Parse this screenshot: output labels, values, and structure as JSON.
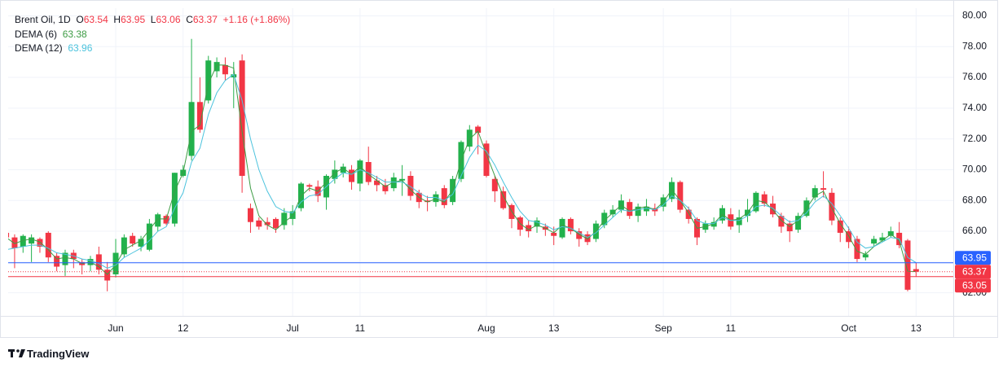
{
  "chart_data": {
    "type": "candlestick",
    "title": "Brent Oil, 1D",
    "ohlc_letters": [
      "O",
      "H",
      "L",
      "C"
    ],
    "change": {
      "value": 1.16,
      "label": "+1.16"
    },
    "change_pct": {
      "value": 1.86,
      "label": "(+1.86%)"
    },
    "categories": [
      null,
      null,
      null,
      null,
      null,
      null,
      null,
      null,
      null,
      null,
      null,
      null,
      null,
      "Jun",
      null,
      null,
      null,
      null,
      null,
      null,
      null,
      "12",
      null,
      null,
      null,
      null,
      null,
      null,
      null,
      null,
      null,
      null,
      null,
      null,
      "Jul",
      null,
      null,
      null,
      null,
      null,
      null,
      null,
      "11",
      null,
      null,
      null,
      null,
      null,
      null,
      null,
      null,
      null,
      null,
      null,
      null,
      null,
      null,
      "Aug",
      null,
      null,
      null,
      null,
      null,
      null,
      null,
      "13",
      null,
      null,
      null,
      null,
      null,
      null,
      null,
      null,
      null,
      null,
      null,
      null,
      "Sep",
      null,
      null,
      null,
      null,
      null,
      null,
      null,
      "11",
      null,
      null,
      null,
      null,
      null,
      null,
      null,
      null,
      null,
      null,
      null,
      null,
      null,
      "Oct",
      null,
      null,
      null,
      null,
      null,
      null,
      null,
      "13"
    ],
    "open": [
      65.9,
      65.6,
      65.0,
      65.2,
      65.5,
      65.9,
      64.4,
      63.8,
      64.6,
      64.0,
      63.8,
      64.5,
      63.5,
      63.2,
      64.5,
      65.7,
      65.0,
      64.8,
      66.3,
      67.0,
      66.5,
      69.6,
      70.9,
      74.4,
      74.5,
      76.4,
      76.8,
      76.0,
      77.1,
      67.5,
      66.7,
      66.6,
      66.8,
      66.4,
      66.8,
      67.5,
      69.0,
      68.9,
      68.2,
      69.4,
      69.8,
      70.0,
      69.1,
      70.5,
      69.3,
      69.0,
      68.8,
      69.3,
      69.6,
      68.5,
      68.0,
      67.9,
      68.8,
      67.9,
      69.4,
      71.5,
      72.8,
      71.7,
      69.4,
      68.6,
      67.7,
      66.9,
      66.4,
      66.3,
      66.3,
      65.9,
      65.6,
      66.8,
      66.0,
      65.8,
      65.5,
      66.4,
      67.1,
      67.4,
      67.9,
      67.0,
      67.3,
      67.5,
      67.6,
      68.1,
      69.2,
      67.4,
      66.8,
      66.1,
      66.3,
      66.7,
      67.1,
      66.4,
      67.0,
      67.3,
      68.4,
      67.8,
      67.0,
      66.5,
      66.1,
      67.0,
      68.2,
      68.8,
      68.5,
      66.7,
      66.0,
      65.5,
      64.3,
      65.2,
      65.4,
      65.7,
      65.9,
      65.4,
      63.54
    ],
    "high": [
      66.3,
      65.8,
      65.8,
      65.8,
      65.6,
      66.0,
      64.6,
      64.8,
      64.8,
      64.2,
      64.4,
      65.0,
      64.0,
      65.5,
      65.8,
      65.9,
      65.7,
      66.8,
      67.2,
      67.1,
      69.8,
      70.3,
      78.5,
      76.0,
      77.4,
      77.3,
      77.3,
      77.0,
      77.5,
      67.8,
      66.9,
      66.9,
      66.9,
      67.5,
      67.7,
      69.2,
      69.1,
      69.3,
      69.7,
      70.6,
      70.4,
      70.3,
      70.7,
      71.5,
      69.6,
      69.4,
      69.8,
      70.3,
      69.9,
      68.7,
      68.3,
      68.6,
      69.0,
      69.6,
      71.9,
      72.9,
      72.9,
      71.9,
      69.6,
      68.9,
      67.8,
      67.0,
      66.7,
      66.9,
      66.5,
      66.3,
      66.9,
      66.9,
      66.2,
      66.0,
      66.7,
      67.4,
      67.7,
      68.4,
      68.1,
      67.8,
      68.1,
      67.8,
      68.4,
      69.5,
      69.3,
      67.6,
      66.9,
      66.7,
      66.9,
      67.7,
      67.5,
      67.4,
      68.1,
      68.6,
      68.6,
      68.3,
      67.2,
      66.7,
      67.2,
      68.2,
      69.0,
      69.9,
      68.8,
      66.9,
      66.3,
      65.7,
      64.7,
      65.7,
      65.9,
      66.3,
      66.6,
      65.5,
      63.95
    ],
    "low": [
      65.4,
      63.6,
      64.6,
      64.0,
      64.6,
      64.0,
      63.4,
      63.1,
      63.6,
      63.2,
      63.4,
      63.2,
      62.1,
      63.0,
      64.3,
      65.0,
      64.7,
      64.7,
      66.0,
      66.4,
      66.3,
      69.5,
      70.6,
      72.4,
      74.3,
      76.0,
      75.8,
      74.0,
      68.5,
      65.9,
      66.1,
      66.1,
      65.9,
      66.1,
      66.4,
      67.3,
      68.6,
      67.9,
      67.4,
      69.1,
      69.5,
      68.7,
      68.6,
      69.0,
      68.6,
      68.4,
      68.6,
      68.3,
      68.0,
      67.5,
      67.3,
      67.6,
      67.5,
      67.7,
      69.2,
      71.2,
      71.0,
      69.5,
      67.9,
      67.4,
      66.2,
      65.7,
      65.6,
      65.9,
      65.7,
      65.1,
      65.5,
      65.8,
      65.0,
      65.1,
      65.3,
      66.2,
      66.9,
      67.2,
      66.8,
      66.6,
      67.0,
      67.0,
      67.3,
      67.9,
      67.2,
      66.5,
      65.1,
      65.9,
      66.1,
      66.5,
      66.1,
      65.9,
      66.6,
      67.2,
      67.6,
      66.9,
      65.9,
      65.3,
      65.9,
      66.9,
      68.0,
      68.2,
      66.4,
      65.3,
      64.9,
      64.0,
      64.1,
      65.0,
      65.3,
      65.6,
      64.9,
      62.1,
      63.06
    ],
    "close": [
      65.6,
      64.9,
      65.7,
      65.6,
      65.0,
      64.3,
      63.7,
      64.6,
      64.2,
      63.8,
      64.2,
      63.5,
      62.8,
      64.6,
      65.6,
      65.2,
      65.5,
      66.5,
      67.1,
      66.5,
      69.8,
      70.0,
      74.4,
      72.6,
      77.1,
      77.0,
      76.2,
      76.2,
      69.6,
      66.6,
      66.3,
      66.4,
      66.2,
      67.2,
      67.3,
      69.1,
      68.9,
      68.3,
      69.6,
      70.0,
      70.2,
      69.2,
      70.6,
      69.2,
      69.0,
      68.6,
      69.5,
      69.4,
      68.3,
      67.9,
      67.9,
      68.4,
      67.7,
      69.4,
      71.8,
      72.6,
      72.4,
      69.6,
      68.6,
      67.5,
      66.8,
      66.1,
      66.0,
      66.7,
      66.1,
      65.7,
      66.8,
      66.0,
      65.5,
      65.3,
      66.5,
      67.2,
      67.4,
      68.0,
      67.0,
      67.6,
      67.6,
      67.3,
      68.2,
      69.2,
      67.4,
      66.8,
      65.6,
      66.5,
      66.6,
      67.5,
      66.3,
      66.9,
      67.4,
      68.5,
      67.8,
      67.1,
      66.3,
      66.0,
      67.0,
      68.0,
      68.8,
      68.7,
      66.7,
      65.9,
      65.3,
      64.2,
      64.5,
      65.5,
      65.6,
      66.0,
      65.1,
      62.2,
      63.37
    ],
    "up_color": "#22b14c",
    "down_color": "#f23645",
    "series": [
      {
        "name": "DEMA (6)",
        "color": "#3e9c45",
        "values": [
          65.6,
          65.2,
          65.4,
          65.5,
          65.3,
          64.8,
          64.2,
          64.3,
          64.2,
          63.9,
          64.0,
          63.7,
          63.2,
          63.8,
          64.8,
          65.1,
          65.4,
          66.1,
          66.8,
          66.8,
          68.6,
          69.8,
          72.5,
          72.9,
          75.6,
          76.8,
          76.8,
          76.6,
          72.5,
          68.8,
          67.0,
          66.4,
          66.1,
          66.6,
          67.0,
          68.3,
          68.8,
          68.6,
          69.2,
          69.8,
          70.1,
          69.7,
          70.2,
          69.7,
          69.3,
          68.9,
          69.2,
          69.3,
          68.7,
          68.2,
          67.9,
          68.1,
          67.9,
          68.7,
          70.6,
          72.0,
          72.5,
          71.0,
          69.6,
          68.3,
          67.3,
          66.5,
          66.1,
          66.4,
          66.2,
          65.9,
          66.4,
          66.2,
          65.8,
          65.5,
          66.0,
          66.7,
          67.2,
          67.7,
          67.3,
          67.5,
          67.6,
          67.4,
          67.9,
          68.7,
          68.0,
          67.2,
          66.2,
          66.3,
          66.5,
          67.1,
          66.7,
          66.8,
          67.2,
          68.0,
          67.9,
          67.4,
          66.7,
          66.3,
          66.7,
          67.5,
          68.3,
          68.6,
          67.5,
          66.5,
          65.7,
          64.7,
          64.5,
          65.0,
          65.4,
          65.8,
          65.4,
          63.4,
          63.38
        ]
      },
      {
        "name": "DEMA (12)",
        "color": "#4cc3dd",
        "values": [
          64.8,
          64.9,
          65.0,
          65.1,
          65.1,
          64.9,
          64.6,
          64.5,
          64.4,
          64.2,
          64.1,
          63.9,
          63.6,
          63.8,
          64.3,
          64.6,
          64.9,
          65.4,
          66.0,
          66.3,
          67.5,
          68.5,
          70.5,
          71.4,
          73.6,
          75.0,
          75.8,
          76.2,
          74.5,
          72.0,
          70.0,
          68.6,
          67.6,
          67.3,
          67.2,
          67.9,
          68.3,
          68.4,
          68.9,
          69.4,
          69.8,
          69.7,
          70.0,
          69.8,
          69.5,
          69.2,
          69.2,
          69.2,
          68.9,
          68.5,
          68.2,
          68.2,
          68.0,
          68.4,
          69.6,
          70.8,
          71.6,
          71.2,
          70.3,
          69.2,
          68.2,
          67.3,
          66.7,
          66.6,
          66.4,
          66.1,
          66.3,
          66.2,
          65.9,
          65.6,
          65.9,
          66.4,
          66.9,
          67.4,
          67.3,
          67.4,
          67.5,
          67.4,
          67.7,
          68.3,
          68.0,
          67.5,
          66.7,
          66.5,
          66.5,
          66.9,
          66.7,
          66.7,
          67.0,
          67.6,
          67.7,
          67.5,
          67.0,
          66.6,
          66.7,
          67.2,
          67.9,
          68.3,
          67.8,
          67.0,
          66.2,
          65.3,
          64.9,
          65.0,
          65.3,
          65.6,
          65.5,
          64.3,
          63.96
        ]
      }
    ],
    "price_lines": [
      {
        "value": 63.95,
        "color": "#2962ff",
        "style": "solid"
      },
      {
        "value": 63.37,
        "color": "#f23645",
        "style": "dotted"
      },
      {
        "value": 63.05,
        "color": "#f23645",
        "style": "solid"
      }
    ],
    "ylim": [
      60.5,
      80.5
    ],
    "yticks": [
      {
        "value": 62,
        "label": "62.00"
      },
      {
        "value": 64,
        "label": "64.00"
      },
      {
        "value": 66,
        "label": "66.00"
      },
      {
        "value": 68,
        "label": "68.00"
      },
      {
        "value": 70,
        "label": "70.00"
      },
      {
        "value": 72,
        "label": "72.00"
      },
      {
        "value": 74,
        "label": "74.00"
      },
      {
        "value": 76,
        "label": "76.00"
      },
      {
        "value": 78,
        "label": "78.00"
      },
      {
        "value": 80,
        "label": "80.00"
      }
    ],
    "grid": true
  },
  "footer": {
    "brand": "TradingView"
  }
}
